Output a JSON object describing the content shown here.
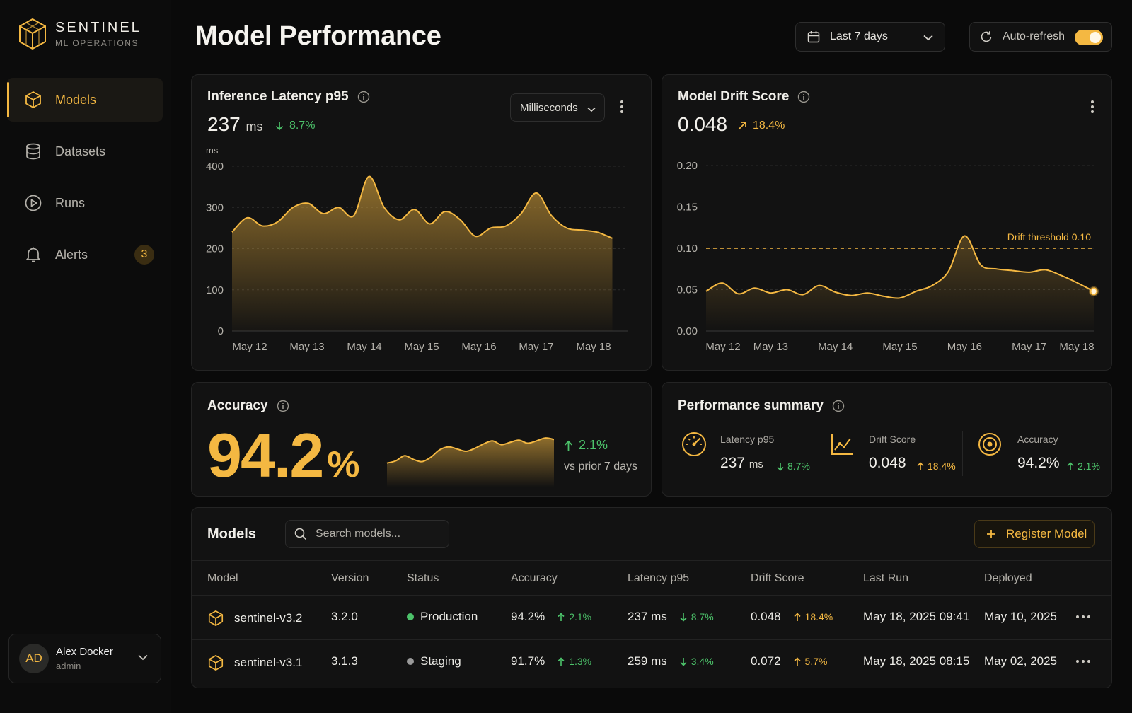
{
  "brand": {
    "name": "SENTINEL",
    "subtitle": "ML OPERATIONS"
  },
  "sidebar": {
    "items": [
      {
        "label": "Models",
        "icon": "cube-icon",
        "active": true
      },
      {
        "label": "Datasets",
        "icon": "database-icon"
      },
      {
        "label": "Runs",
        "icon": "play-circle-icon"
      },
      {
        "label": "Alerts",
        "icon": "bell-icon",
        "badge": "3"
      }
    ],
    "user": {
      "initials": "AD",
      "name": "Alex Docker",
      "role": "admin"
    }
  },
  "header": {
    "title": "Model Performance",
    "date_range": "Last 7 days",
    "auto_refresh_label": "Auto-refresh",
    "auto_refresh_on": true
  },
  "colors": {
    "accent": "#f4b842",
    "positive": "#4cc26a",
    "background": "#0a0a0a",
    "card": "#121212"
  },
  "latency_card": {
    "title": "Inference Latency p95",
    "value": "237",
    "unit": "ms",
    "delta": "8.7%",
    "delta_direction": "down",
    "unit_select": "Milliseconds"
  },
  "drift_card": {
    "title": "Model Drift Score",
    "value": "0.048",
    "delta": "18.4%",
    "delta_direction": "up"
  },
  "accuracy_card": {
    "title": "Accuracy",
    "value": "94.2",
    "unit": "%",
    "delta": "2.1%",
    "delta_direction": "up",
    "comparison": "vs prior 7 days"
  },
  "summary_card": {
    "title": "Performance summary",
    "items": [
      {
        "label": "Latency p95",
        "value": "237",
        "unit": "ms",
        "delta": "8.7%",
        "direction": "down",
        "icon": "gauge-icon"
      },
      {
        "label": "Drift Score",
        "value": "0.048",
        "unit": "",
        "delta": "18.4%",
        "direction": "up",
        "icon": "line-chart-icon"
      },
      {
        "label": "Accuracy",
        "value": "94.2%",
        "unit": "",
        "delta": "2.1%",
        "direction": "up",
        "icon": "target-icon"
      }
    ]
  },
  "models_table": {
    "title": "Models",
    "search_placeholder": "Search models...",
    "register_label": "Register Model",
    "columns": [
      "Model",
      "Version",
      "Status",
      "Accuracy",
      "Latency p95",
      "Drift Score",
      "Last Run",
      "Deployed"
    ],
    "rows": [
      {
        "model": "sentinel-v3.2",
        "version": "3.2.0",
        "status": "Production",
        "status_color": "#4cc26a",
        "accuracy": "94.2%",
        "accuracy_delta": "2.1%",
        "latency": "237 ms",
        "latency_delta": "8.7%",
        "drift": "0.048",
        "drift_delta": "18.4%",
        "last_run": "May 18, 2025 09:41",
        "deployed": "May 10, 2025"
      },
      {
        "model": "sentinel-v3.1",
        "version": "3.1.3",
        "status": "Staging",
        "status_color": "#9a9a9a",
        "accuracy": "91.7%",
        "accuracy_delta": "1.3%",
        "latency": "259 ms",
        "latency_delta": "3.4%",
        "drift": "0.072",
        "drift_delta": "5.7%",
        "last_run": "May 18, 2025 08:15",
        "deployed": "May 02, 2025"
      }
    ]
  },
  "chart_data": [
    {
      "type": "area",
      "title": "Inference Latency p95",
      "ylabel": "ms",
      "ylim": [
        0,
        400
      ],
      "yticks": [
        "0",
        "100",
        "200",
        "300",
        "400"
      ],
      "categories": [
        "May 12",
        "May 13",
        "May 14",
        "May 15",
        "May 16",
        "May 17",
        "May 18"
      ],
      "grid": true,
      "x": [
        0,
        0.25,
        0.5,
        0.75,
        1.0,
        1.25,
        1.5,
        1.75,
        2.0,
        2.25,
        2.5,
        2.75,
        3.0,
        3.25,
        3.5,
        3.75,
        4.0,
        4.25,
        4.5,
        4.75,
        5.0,
        5.25,
        5.5,
        5.75,
        6.0,
        6.25
      ],
      "values": [
        240,
        275,
        255,
        265,
        300,
        310,
        285,
        300,
        280,
        375,
        300,
        270,
        295,
        260,
        290,
        270,
        230,
        250,
        255,
        285,
        335,
        280,
        250,
        245,
        240,
        225
      ]
    },
    {
      "type": "area",
      "title": "Model Drift Score",
      "ylim": [
        0,
        0.2
      ],
      "yticks": [
        "0.00",
        "0.05",
        "0.10",
        "0.15",
        "0.20"
      ],
      "categories": [
        "May 12",
        "May 13",
        "May 14",
        "May 15",
        "May 16",
        "May 17",
        "May 18"
      ],
      "grid": true,
      "threshold": {
        "value": 0.1,
        "label": "Drift threshold 0.10"
      },
      "x": [
        0,
        0.25,
        0.5,
        0.75,
        1.0,
        1.25,
        1.5,
        1.75,
        2.0,
        2.25,
        2.5,
        2.75,
        3.0,
        3.25,
        3.5,
        3.75,
        4.0,
        4.25,
        4.5,
        4.75,
        5.0,
        5.25,
        5.5,
        5.75,
        6.0
      ],
      "values": [
        0.048,
        0.058,
        0.045,
        0.052,
        0.046,
        0.05,
        0.044,
        0.055,
        0.047,
        0.043,
        0.046,
        0.042,
        0.04,
        0.048,
        0.055,
        0.072,
        0.115,
        0.08,
        0.075,
        0.073,
        0.071,
        0.074,
        0.067,
        0.058,
        0.048
      ]
    },
    {
      "type": "area",
      "title": "Accuracy",
      "x": [
        0,
        1,
        2,
        3,
        4,
        5,
        6,
        7,
        8,
        9,
        10,
        11,
        12,
        13,
        14,
        15,
        16,
        17,
        18,
        19
      ],
      "values": [
        91.0,
        91.3,
        92.0,
        91.5,
        91.2,
        91.8,
        92.8,
        93.2,
        92.9,
        92.6,
        93.0,
        93.6,
        94.0,
        93.5,
        93.8,
        94.1,
        93.7,
        94.0,
        94.4,
        94.2
      ]
    }
  ]
}
